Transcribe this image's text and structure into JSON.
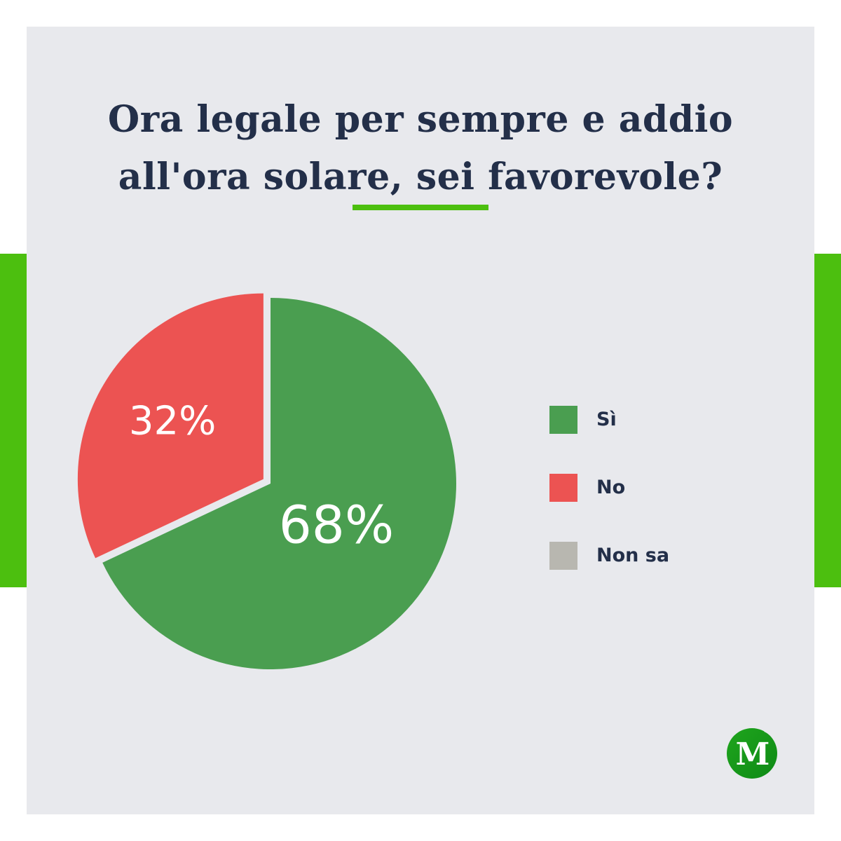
{
  "title_lines": [
    "Ora legale per sempre e addio",
    "all'ora solare, sei favorevole?"
  ],
  "colors": {
    "accent": "#4cbf0f",
    "title_text": "#232f49",
    "background": "#e8e9ed",
    "si": "#4a9e50",
    "no": "#ec5352",
    "non_sa": "#b8b7b0"
  },
  "chart_data": {
    "type": "pie",
    "title": "Ora legale per sempre e addio all'ora solare, sei favorevole?",
    "slices": [
      {
        "label": "Sì",
        "value": 68,
        "value_label": "68%",
        "color": "#4a9e50",
        "exploded": false
      },
      {
        "label": "No",
        "value": 32,
        "value_label": "32%",
        "color": "#ec5352",
        "exploded": true
      },
      {
        "label": "Non sa",
        "value": 0,
        "value_label": "",
        "color": "#b8b7b0",
        "exploded": false
      }
    ],
    "legend": {
      "position": "right",
      "entries": [
        "Sì",
        "No",
        "Non sa"
      ]
    }
  },
  "logo": {
    "letter": "M",
    "icon": "m-logo-icon"
  }
}
